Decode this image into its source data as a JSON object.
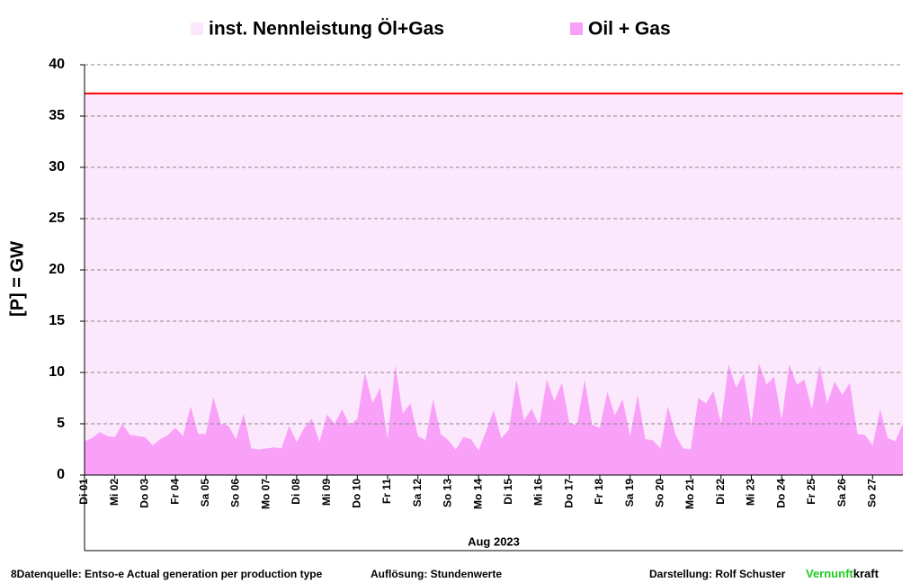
{
  "chart_data": {
    "type": "area",
    "legend": "top",
    "grid": true,
    "ylabel": "[P]  = GW",
    "xlabel": "Aug 2023",
    "ylim": [
      0,
      40
    ],
    "yticks": [
      0,
      5,
      10,
      15,
      20,
      25,
      30,
      35,
      40
    ],
    "xlim": [
      1,
      28
    ],
    "xticks": [
      {
        "value": 1,
        "label": "Di 01"
      },
      {
        "value": 2,
        "label": "Mi 02"
      },
      {
        "value": 3,
        "label": "Do 03"
      },
      {
        "value": 4,
        "label": "Fr 04"
      },
      {
        "value": 5,
        "label": "Sa 05"
      },
      {
        "value": 6,
        "label": "So 06"
      },
      {
        "value": 7,
        "label": "Mo 07"
      },
      {
        "value": 8,
        "label": "Di 08"
      },
      {
        "value": 9,
        "label": "Mi 09"
      },
      {
        "value": 10,
        "label": "Do 10"
      },
      {
        "value": 11,
        "label": "Fr 11"
      },
      {
        "value": 12,
        "label": "Sa 12"
      },
      {
        "value": 13,
        "label": "So 13"
      },
      {
        "value": 14,
        "label": "Mo 14"
      },
      {
        "value": 15,
        "label": "Di 15"
      },
      {
        "value": 16,
        "label": "Mi 16"
      },
      {
        "value": 17,
        "label": "Do 17"
      },
      {
        "value": 18,
        "label": "Fr 18"
      },
      {
        "value": 19,
        "label": "Sa 19"
      },
      {
        "value": 20,
        "label": "So 20"
      },
      {
        "value": 21,
        "label": "Mo 21"
      },
      {
        "value": 22,
        "label": "Di 22"
      },
      {
        "value": 23,
        "label": "Mi 23"
      },
      {
        "value": 24,
        "label": "Do 24"
      },
      {
        "value": 25,
        "label": "Fr 25"
      },
      {
        "value": 26,
        "label": "Sa 26"
      },
      {
        "value": 27,
        "label": "So 27"
      }
    ],
    "series": [
      {
        "name": "inst. Nennleistung Öl+Gas",
        "color": "#fce8fc",
        "line_color": "#ff0000",
        "x": [
          1,
          28
        ],
        "values": [
          37.2,
          37.2
        ]
      },
      {
        "name": "Oil + Gas",
        "color": "#f9a0f9",
        "x": [
          1,
          1.25,
          1.5,
          1.75,
          2,
          2.25,
          2.5,
          2.75,
          3,
          3.25,
          3.5,
          3.75,
          4,
          4.25,
          4.5,
          4.75,
          5,
          5.25,
          5.5,
          5.75,
          6,
          6.25,
          6.5,
          6.75,
          7,
          7.25,
          7.5,
          7.75,
          8,
          8.25,
          8.5,
          8.75,
          9,
          9.25,
          9.5,
          9.75,
          10,
          10.25,
          10.5,
          10.75,
          11,
          11.25,
          11.5,
          11.75,
          12,
          12.25,
          12.5,
          12.75,
          13,
          13.25,
          13.5,
          13.75,
          14,
          14.25,
          14.5,
          14.75,
          15,
          15.25,
          15.5,
          15.75,
          16,
          16.25,
          16.5,
          16.75,
          17,
          17.25,
          17.5,
          17.75,
          18,
          18.25,
          18.5,
          18.75,
          19,
          19.25,
          19.5,
          19.75,
          20,
          20.25,
          20.5,
          20.75,
          21,
          21.25,
          21.5,
          21.75,
          22,
          22.25,
          22.5,
          22.75,
          23,
          23.25,
          23.5,
          23.75,
          24,
          24.25,
          24.5,
          24.75,
          25,
          25.25,
          25.5,
          25.75,
          26,
          26.25,
          26.5,
          26.75,
          27,
          27.25,
          27.5,
          27.75,
          28
        ],
        "values": [
          3.3,
          3.6,
          4.2,
          3.8,
          3.7,
          5.0,
          3.9,
          3.8,
          3.7,
          2.9,
          3.5,
          3.9,
          4.6,
          3.8,
          6.7,
          4.0,
          4.0,
          7.6,
          5.0,
          4.8,
          3.5,
          6.0,
          2.6,
          2.5,
          2.6,
          2.7,
          2.6,
          4.8,
          3.2,
          4.6,
          5.5,
          3.2,
          5.9,
          5.0,
          6.4,
          4.8,
          5.5,
          10.0,
          7.0,
          8.5,
          3.5,
          10.7,
          6.0,
          7.0,
          3.8,
          3.4,
          7.4,
          4.0,
          3.4,
          2.5,
          3.7,
          3.5,
          2.4,
          4.3,
          6.3,
          3.6,
          4.4,
          9.3,
          5.3,
          6.5,
          4.8,
          9.3,
          7.2,
          9.0,
          5.0,
          4.9,
          9.3,
          4.9,
          4.6,
          8.1,
          5.8,
          7.4,
          3.8,
          7.8,
          3.5,
          3.4,
          2.6,
          6.7,
          3.9,
          2.6,
          2.5,
          7.5,
          7.0,
          8.2,
          5.0,
          10.8,
          8.5,
          9.9,
          5.0,
          10.9,
          8.8,
          9.6,
          5.4,
          10.8,
          8.8,
          9.3,
          6.4,
          10.7,
          7.0,
          9.1,
          7.8,
          9.0,
          4.0,
          3.9,
          2.9,
          6.4,
          3.6,
          3.3,
          5.0
        ]
      }
    ]
  },
  "footer": {
    "source": "8Datenquelle: Entso-e  Actual generation per production type",
    "resolution": "Auflösung: Stundenwerte",
    "author": "Darstellung:  Rolf Schuster",
    "brand_a": "Vernunft",
    "brand_b": "kraft"
  }
}
